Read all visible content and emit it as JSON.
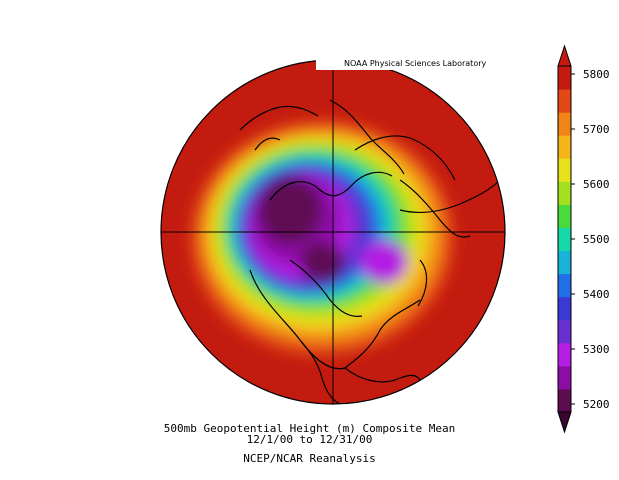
{
  "credit": "NOAA Physical Sciences Laboratory",
  "caption": {
    "line1": "500mb Geopotential Height (m) Composite Mean",
    "line2": "12/1/00  to 12/31/00",
    "line3": "NCEP/NCAR Reanalysis"
  },
  "colorbar": {
    "labels": [
      "5800",
      "5700",
      "5600",
      "5500",
      "5400",
      "5300",
      "5200"
    ],
    "colors": [
      "#5e0c52",
      "#8c0da6",
      "#b41fe3",
      "#6a2fcf",
      "#3b39d6",
      "#1f6fe6",
      "#19b2d8",
      "#16d8a8",
      "#47db3b",
      "#a3e01d",
      "#e8e21a",
      "#f6b51b",
      "#f28418",
      "#e24916",
      "#c41b10"
    ]
  },
  "map": {
    "projection": "north-polar-stereographic",
    "field": "500mb geopotential height"
  }
}
